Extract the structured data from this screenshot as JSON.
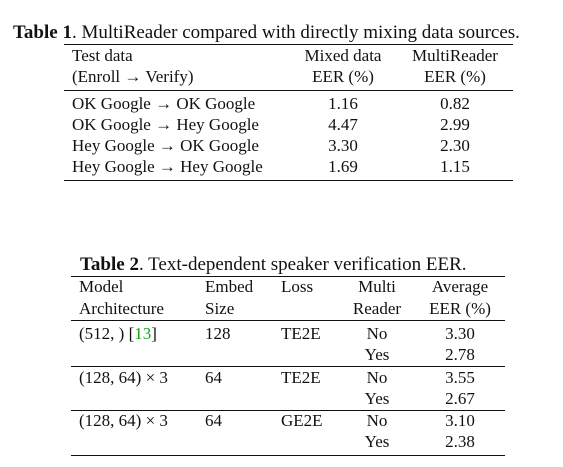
{
  "table1": {
    "label": "Table 1",
    "caption": ". MultiReader compared with directly mixing data sources.",
    "header": {
      "col1_line1": "Test data",
      "col1_line2": "(Enroll → Verify)",
      "col2_line1": "Mixed data",
      "col2_line2": "EER (%)",
      "col3_line1": "MultiReader",
      "col3_line2": "EER (%)"
    },
    "rows": [
      {
        "test": "OK Google → OK Google",
        "mixed": "1.16",
        "multi": "0.82"
      },
      {
        "test": "OK Google → Hey Google",
        "mixed": "4.47",
        "multi": "2.99"
      },
      {
        "test": "Hey Google → OK Google",
        "mixed": "3.30",
        "multi": "2.30"
      },
      {
        "test": "Hey Google → Hey Google",
        "mixed": "1.69",
        "multi": "1.15"
      }
    ]
  },
  "table2": {
    "label": "Table 2",
    "caption": ". Text-dependent speaker verification EER.",
    "header": {
      "model_line1": "Model",
      "model_line2": "Architecture",
      "embed_line1": "Embed",
      "embed_line2": "Size",
      "loss": "Loss",
      "multi_line1": "Multi",
      "multi_line2": "Reader",
      "avg_line1": "Average",
      "avg_line2": "EER (%)"
    },
    "groups": [
      {
        "model": "(512, ) [",
        "cite": "13",
        "model_tail": "]",
        "embed": "128",
        "loss": "TE2E",
        "rows": [
          {
            "multi": "No",
            "eer": "3.30"
          },
          {
            "multi": "Yes",
            "eer": "2.78"
          }
        ]
      },
      {
        "model": "(128, 64) × 3",
        "cite": "",
        "model_tail": "",
        "embed": "64",
        "loss": "TE2E",
        "rows": [
          {
            "multi": "No",
            "eer": "3.55"
          },
          {
            "multi": "Yes",
            "eer": "2.67"
          }
        ]
      },
      {
        "model": "(128, 64) × 3",
        "cite": "",
        "model_tail": "",
        "embed": "64",
        "loss": "GE2E",
        "rows": [
          {
            "multi": "No",
            "eer": "3.10"
          },
          {
            "multi": "Yes",
            "eer": "2.38"
          }
        ]
      }
    ]
  }
}
